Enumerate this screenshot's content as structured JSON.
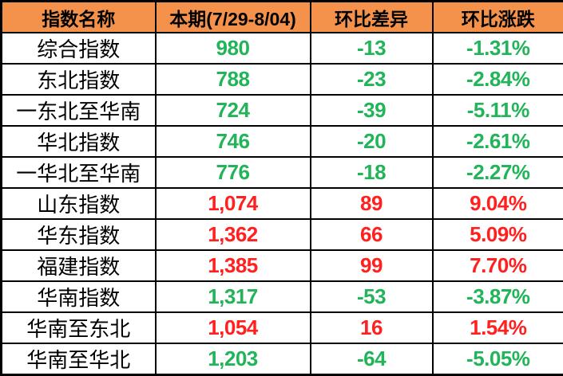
{
  "table": {
    "columns": [
      {
        "label": "指数名称"
      },
      {
        "label": "本期(7/29-8/04)"
      },
      {
        "label": "环比差异"
      },
      {
        "label": "环比涨跌"
      }
    ],
    "rows": [
      {
        "name": "综合指数",
        "current": "980",
        "diff": "-13",
        "pct": "-1.31%",
        "trend": "down"
      },
      {
        "name": "东北指数",
        "current": "788",
        "diff": "-23",
        "pct": "-2.84%",
        "trend": "down"
      },
      {
        "name": "一东北至华南",
        "current": "724",
        "diff": "-39",
        "pct": "-5.11%",
        "trend": "down"
      },
      {
        "name": "华北指数",
        "current": "746",
        "diff": "-20",
        "pct": "-2.61%",
        "trend": "down"
      },
      {
        "name": "一华北至华南",
        "current": "776",
        "diff": "-18",
        "pct": "-2.27%",
        "trend": "down"
      },
      {
        "name": "山东指数",
        "current": "1,074",
        "diff": "89",
        "pct": "9.04%",
        "trend": "up"
      },
      {
        "name": "华东指数",
        "current": "1,362",
        "diff": "66",
        "pct": "5.09%",
        "trend": "up"
      },
      {
        "name": "福建指数",
        "current": "1,385",
        "diff": "99",
        "pct": "7.70%",
        "trend": "up"
      },
      {
        "name": "华南指数",
        "current": "1,317",
        "diff": "-53",
        "pct": "-3.87%",
        "trend": "down"
      },
      {
        "name": "华南至东北",
        "current": "1,054",
        "diff": "16",
        "pct": "1.54%",
        "trend": "up"
      },
      {
        "name": "华南至华北",
        "current": "1,203",
        "diff": "-64",
        "pct": "-5.05%",
        "trend": "down"
      }
    ],
    "colors": {
      "header_bg": "#F4924C",
      "header_text": "#000000",
      "up": "#FF2020",
      "down": "#21B459",
      "border": "#000000",
      "row_bg": "#FFFFFF"
    }
  },
  "chart_data": {
    "type": "table",
    "title": "",
    "columns": [
      "指数名称",
      "本期(7/29-8/04)",
      "环比差异",
      "环比涨跌"
    ],
    "rows": [
      [
        "综合指数",
        980,
        -13,
        "-1.31%"
      ],
      [
        "东北指数",
        788,
        -23,
        "-2.84%"
      ],
      [
        "一东北至华南",
        724,
        -39,
        "-5.11%"
      ],
      [
        "华北指数",
        746,
        -20,
        "-2.61%"
      ],
      [
        "一华北至华南",
        776,
        -18,
        "-2.27%"
      ],
      [
        "山东指数",
        1074,
        89,
        "9.04%"
      ],
      [
        "华东指数",
        1362,
        66,
        "5.09%"
      ],
      [
        "福建指数",
        1385,
        99,
        "7.70%"
      ],
      [
        "华南指数",
        1317,
        -53,
        "-3.87%"
      ],
      [
        "华南至东北",
        1054,
        16,
        "1.54%"
      ],
      [
        "华南至华北",
        1203,
        -64,
        "-5.05%"
      ]
    ],
    "layout_hints": {
      "header_bg": "#F4924C",
      "positive_color": "#FF2020",
      "negative_color": "#21B459",
      "grid": true
    }
  }
}
